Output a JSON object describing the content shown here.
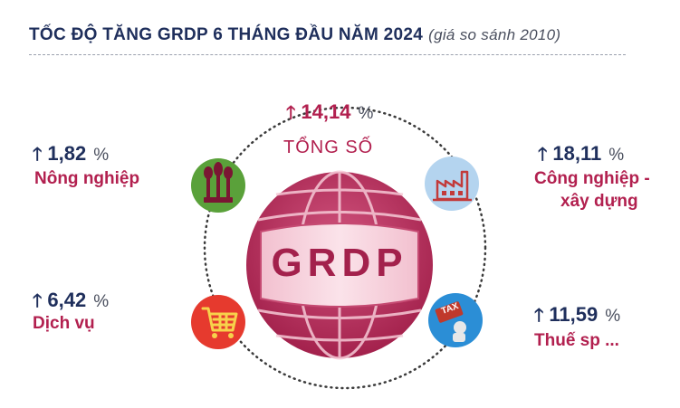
{
  "header": {
    "title": "TỐC ĐỘ TĂNG GRDP 6 THÁNG ĐẦU NĂM 2024",
    "subtitle": "(giá so sánh 2010)"
  },
  "center": {
    "globe_text": "GRDP",
    "total_label": "TỔNG SỐ",
    "total_value": "14,14",
    "unit": "%"
  },
  "sectors": [
    {
      "value": "1,82",
      "unit": "%",
      "label": "Nông nghiệp",
      "icon": "wheat-icon"
    },
    {
      "value": "18,11",
      "unit": "%",
      "label_line1": "Công nghiệp  -",
      "label_line2": "xây dựng",
      "icon": "factory-icon"
    },
    {
      "value": "6,42",
      "unit": "%",
      "label": "Dịch vụ",
      "icon": "shopping-cart-icon"
    },
    {
      "value": "11,59",
      "unit": "%",
      "label": "Thuế sp ...",
      "icon": "tax-icon",
      "icon_text": "TAX"
    }
  ],
  "colors": {
    "navy": "#1f2f5c",
    "crimson": "#b2204f",
    "green": "#5aa13a",
    "light_blue": "#b4d4ef",
    "red": "#e63a2e",
    "blue": "#2b8ed6"
  }
}
